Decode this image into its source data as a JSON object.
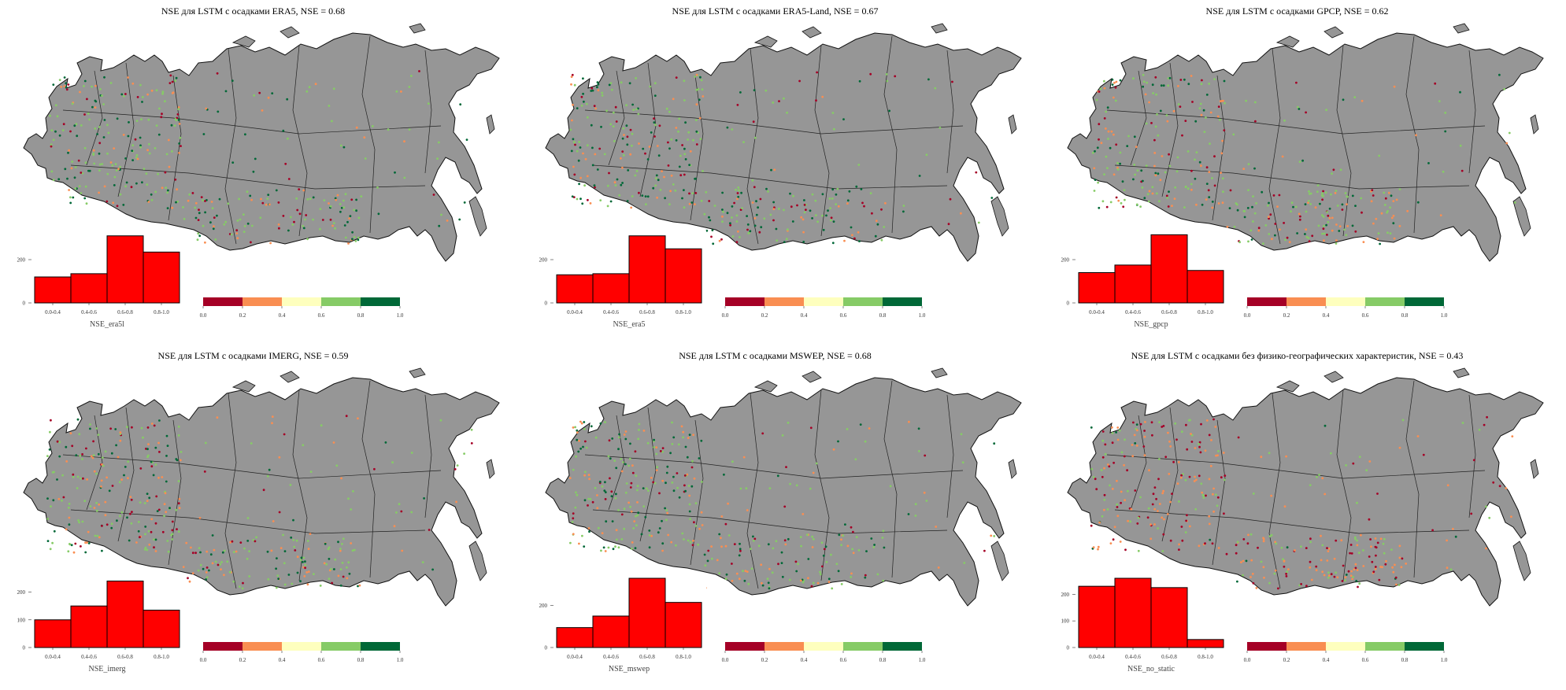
{
  "figure": {
    "legend_colors": [
      "#a50026",
      "#f98e52",
      "#feffbe",
      "#86cb66",
      "#006837"
    ],
    "land_color": "#969696",
    "bar_color": "#ff0000"
  },
  "chart_data": [
    {
      "type": "bar",
      "title": "NSE для LSTM с осадками ERA5, NSE = 0.68",
      "xlabel": "NSE_era5l",
      "categories": [
        "0.0-0.4",
        "0.4-0.6",
        "0.6-0.8",
        "0.8-1.0"
      ],
      "values": [
        120,
        135,
        310,
        235
      ],
      "yticks": [
        0,
        200
      ],
      "ylim": [
        0,
        320
      ],
      "colorbar_ticks": [
        "0.0",
        "0.2",
        "0.4",
        "0.6",
        "0.8",
        "1.0"
      ]
    },
    {
      "type": "bar",
      "title": "NSE для LSTM с осадками ERA5-Land, NSE = 0.67",
      "xlabel": "NSE_era5",
      "categories": [
        "0.0-0.4",
        "0.4-0.6",
        "0.6-0.8",
        "0.8-1.0"
      ],
      "values": [
        130,
        135,
        310,
        250
      ],
      "yticks": [
        0,
        200
      ],
      "ylim": [
        0,
        320
      ],
      "colorbar_ticks": [
        "0.0",
        "0.2",
        "0.4",
        "0.6",
        "0.8",
        "1.0"
      ]
    },
    {
      "type": "bar",
      "title": "NSE для LSTM с осадками  GPCP, NSE = 0.62",
      "xlabel": "NSE_gpcp",
      "categories": [
        "0.0-0.4",
        "0.4-0.6",
        "0.6-0.8",
        "0.8-1.0"
      ],
      "values": [
        140,
        175,
        315,
        150
      ],
      "yticks": [
        0,
        200
      ],
      "ylim": [
        0,
        320
      ],
      "colorbar_ticks": [
        "0.0",
        "0.2",
        "0.4",
        "0.6",
        "0.8",
        "1.0"
      ]
    },
    {
      "type": "bar",
      "title": "NSE для LSTM с осадками IMERG, NSE = 0.59",
      "xlabel": "NSE_imerg",
      "categories": [
        "0.0-0.4",
        "0.4-0.6",
        "0.6-0.8",
        "0.8-1.0"
      ],
      "values": [
        100,
        150,
        240,
        135
      ],
      "yticks": [
        0,
        100,
        200
      ],
      "ylim": [
        0,
        250
      ],
      "colorbar_ticks": [
        "0.0",
        "0.2",
        "0.4",
        "0.6",
        "0.8",
        "1.0"
      ]
    },
    {
      "type": "bar",
      "title": "NSE для LSTM с осадками  MSWEP, NSE = 0.68",
      "xlabel": "NSE_mswep",
      "categories": [
        "0.0-0.4",
        "0.4-0.6",
        "0.6-0.8",
        "0.8-1.0"
      ],
      "values": [
        95,
        150,
        330,
        215
      ],
      "yticks": [
        0,
        200
      ],
      "ylim": [
        0,
        330
      ],
      "colorbar_ticks": [
        "0.0",
        "0.2",
        "0.4",
        "0.6",
        "0.8",
        "1.0"
      ]
    },
    {
      "type": "bar",
      "title": "NSE для LSTM с осадками без физико-географических характеристик, NSE = 0.43",
      "xlabel": "NSE_no_static",
      "categories": [
        "0.0-0.4",
        "0.4-0.6",
        "0.6-0.8",
        "0.8-1.0"
      ],
      "values": [
        230,
        260,
        225,
        30
      ],
      "yticks": [
        0,
        100,
        200
      ],
      "ylim": [
        0,
        260
      ],
      "colorbar_ticks": [
        "0.0",
        "0.2",
        "0.4",
        "0.6",
        "0.8",
        "1.0"
      ]
    }
  ]
}
